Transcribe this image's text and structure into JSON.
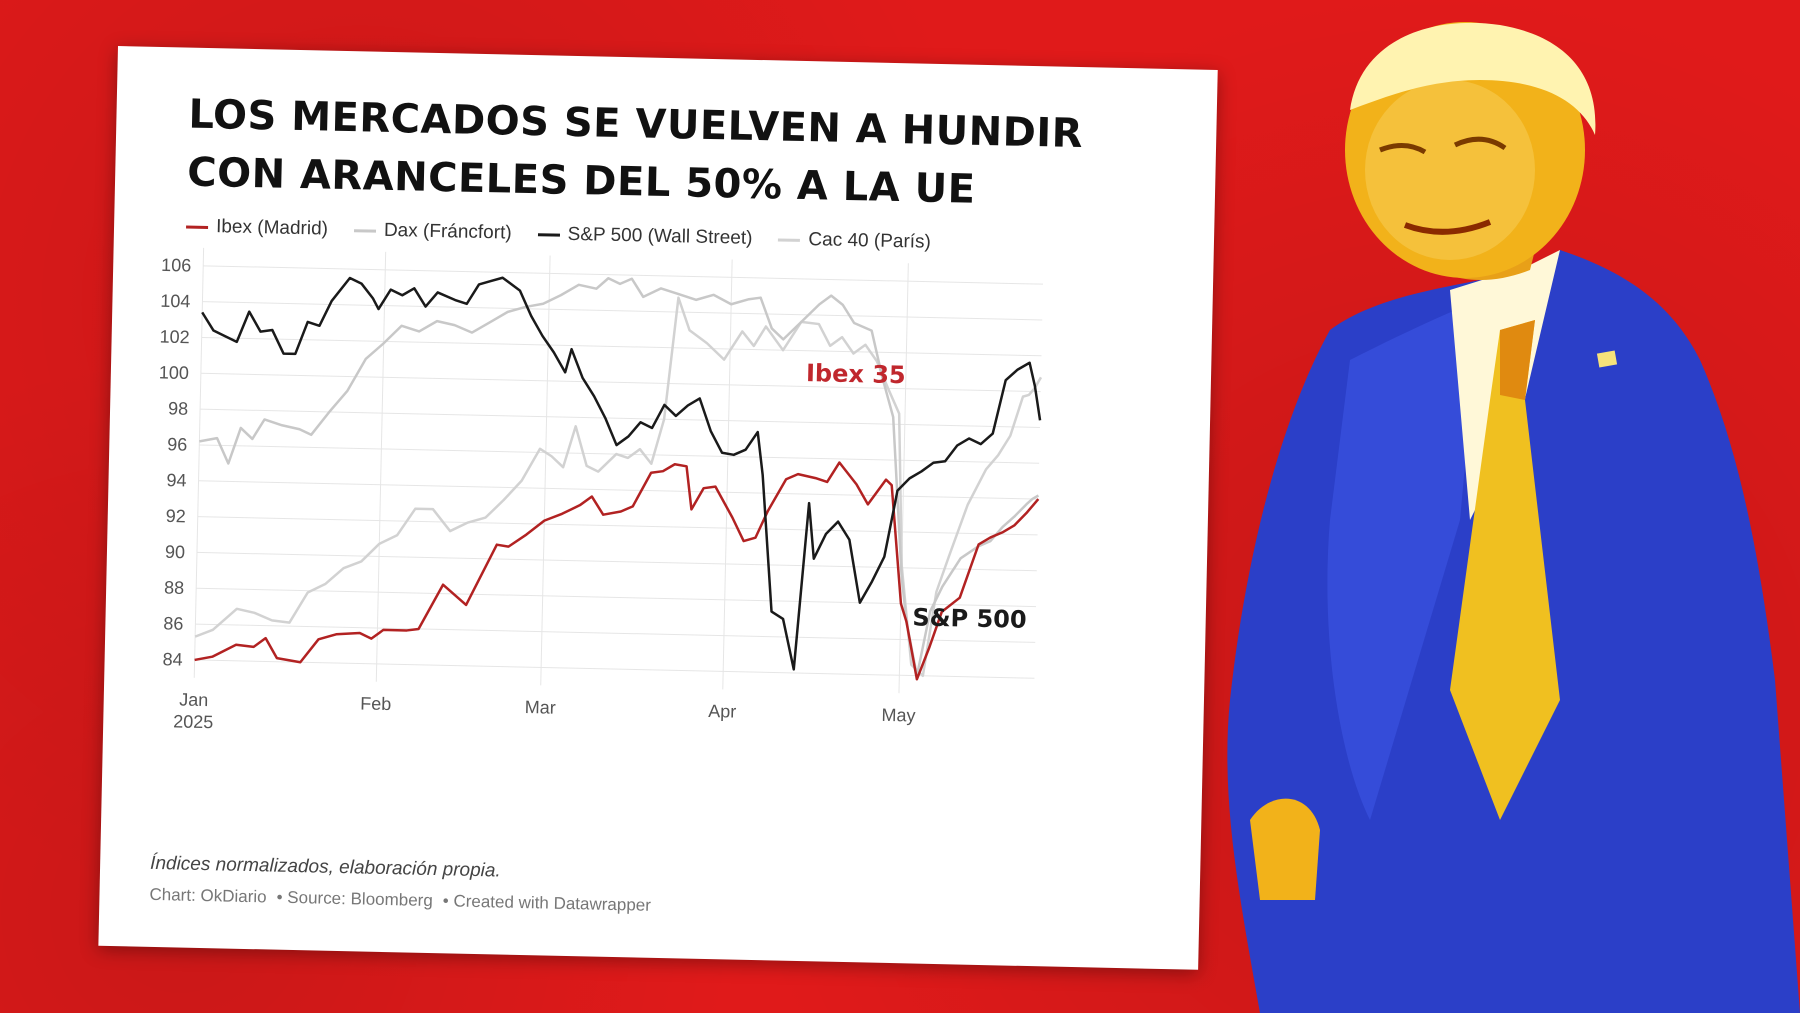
{
  "chart_data": {
    "type": "line",
    "title": "LOS MERCADOS SE VUELVEN A HUNDIR CON ARANCELES DEL 50% A LA UE",
    "title_lines": [
      "LOS MERCADOS SE VUELVEN A HUNDIR",
      "CON ARANCELES DEL 50% A LA UE"
    ],
    "ylim": [
      83,
      107
    ],
    "y_ticks": [
      84,
      86,
      88,
      90,
      92,
      94,
      96,
      98,
      100,
      102,
      104,
      106
    ],
    "x_ticks": [
      {
        "label": "Jan",
        "sub": "2025",
        "day": 1
      },
      {
        "label": "Feb",
        "sub": "",
        "day": 32
      },
      {
        "label": "Mar",
        "sub": "",
        "day": 60
      },
      {
        "label": "Apr",
        "sub": "",
        "day": 91
      },
      {
        "label": "May",
        "sub": "",
        "day": 121
      }
    ],
    "xlim": [
      1,
      144
    ],
    "grid": true,
    "legend_position": "top-left",
    "series": [
      {
        "name": "Ibex (Madrid)",
        "color": "#b22222",
        "width": 2.5,
        "points": [
          [
            1,
            84.0
          ],
          [
            4,
            84.2
          ],
          [
            8,
            84.9
          ],
          [
            11,
            84.8
          ],
          [
            13,
            85.3
          ],
          [
            15,
            84.2
          ],
          [
            19,
            84.0
          ],
          [
            22,
            85.3
          ],
          [
            25,
            85.6
          ],
          [
            29,
            85.7
          ],
          [
            31,
            85.4
          ],
          [
            33,
            85.9
          ],
          [
            37,
            85.9
          ],
          [
            39,
            86.0
          ],
          [
            43,
            88.5
          ],
          [
            47,
            87.4
          ],
          [
            52,
            90.8
          ],
          [
            54,
            90.7
          ],
          [
            57,
            91.4
          ],
          [
            60,
            92.2
          ],
          [
            63,
            92.6
          ],
          [
            66,
            93.1
          ],
          [
            68,
            93.6
          ],
          [
            70,
            92.6
          ],
          [
            73,
            92.8
          ],
          [
            75,
            93.1
          ],
          [
            78,
            95.0
          ],
          [
            80,
            95.1
          ],
          [
            82,
            95.5
          ],
          [
            84,
            95.4
          ],
          [
            85,
            93.0
          ],
          [
            87,
            94.2
          ],
          [
            89,
            94.3
          ],
          [
            92,
            92.6
          ],
          [
            94,
            91.3
          ],
          [
            96,
            91.5
          ],
          [
            98,
            93.0
          ],
          [
            101,
            94.8
          ],
          [
            103,
            95.1
          ],
          [
            106,
            94.9
          ],
          [
            108,
            94.7
          ],
          [
            110,
            95.8
          ],
          [
            113,
            94.6
          ],
          [
            115,
            93.5
          ],
          [
            118,
            94.9
          ],
          [
            119,
            94.6
          ],
          [
            121,
            88.0
          ],
          [
            122,
            87.0
          ],
          [
            124,
            83.8
          ],
          [
            126,
            85.6
          ],
          [
            128,
            87.6
          ],
          [
            131,
            88.4
          ],
          [
            134,
            91.4
          ],
          [
            136,
            91.8
          ],
          [
            138,
            92.1
          ],
          [
            140,
            92.5
          ],
          [
            142,
            93.2
          ],
          [
            143,
            93.6
          ],
          [
            144,
            94.0
          ]
        ]
      },
      {
        "name": "Dax (Fráncfort)",
        "color": "#c8c8c8",
        "width": 2.5,
        "points": [
          [
            1,
            96.2
          ],
          [
            4,
            96.4
          ],
          [
            6,
            95.0
          ],
          [
            8,
            97.0
          ],
          [
            10,
            96.4
          ],
          [
            12,
            97.5
          ],
          [
            15,
            97.2
          ],
          [
            18,
            97.0
          ],
          [
            20,
            96.7
          ],
          [
            23,
            98.0
          ],
          [
            26,
            99.2
          ],
          [
            29,
            101.0
          ],
          [
            32,
            101.9
          ],
          [
            35,
            102.9
          ],
          [
            38,
            102.6
          ],
          [
            41,
            103.2
          ],
          [
            44,
            103.0
          ],
          [
            47,
            102.6
          ],
          [
            50,
            103.2
          ],
          [
            53,
            103.8
          ],
          [
            56,
            104.1
          ],
          [
            59,
            104.3
          ],
          [
            62,
            104.8
          ],
          [
            65,
            105.4
          ],
          [
            68,
            105.2
          ],
          [
            70,
            105.8
          ],
          [
            72,
            105.5
          ],
          [
            74,
            105.8
          ],
          [
            76,
            104.8
          ],
          [
            79,
            105.3
          ],
          [
            82,
            105.0
          ],
          [
            85,
            104.7
          ],
          [
            88,
            105.0
          ],
          [
            91,
            104.5
          ],
          [
            94,
            104.8
          ],
          [
            96,
            104.9
          ],
          [
            98,
            103.2
          ],
          [
            100,
            102.6
          ],
          [
            103,
            103.6
          ],
          [
            106,
            104.6
          ],
          [
            108,
            105.1
          ],
          [
            110,
            104.6
          ],
          [
            112,
            103.6
          ],
          [
            115,
            103.2
          ],
          [
            117,
            100.6
          ],
          [
            119,
            98.4
          ],
          [
            121,
            89.6
          ],
          [
            122,
            87.0
          ],
          [
            124,
            84.0
          ],
          [
            126,
            87.6
          ],
          [
            128,
            89.0
          ],
          [
            131,
            90.6
          ],
          [
            134,
            91.3
          ],
          [
            136,
            91.6
          ],
          [
            138,
            92.4
          ],
          [
            140,
            93.0
          ],
          [
            142,
            93.7
          ],
          [
            143,
            94.0
          ],
          [
            144,
            94.2
          ]
        ]
      },
      {
        "name": "S&P 500 (Wall Street)",
        "color": "#1a1a1a",
        "width": 2.5,
        "points": [
          [
            1,
            103.4
          ],
          [
            3,
            102.4
          ],
          [
            5,
            102.1
          ],
          [
            7,
            101.8
          ],
          [
            9,
            103.5
          ],
          [
            11,
            102.4
          ],
          [
            13,
            102.5
          ],
          [
            15,
            101.2
          ],
          [
            17,
            101.2
          ],
          [
            19,
            103.0
          ],
          [
            21,
            102.8
          ],
          [
            23,
            104.2
          ],
          [
            26,
            105.5
          ],
          [
            28,
            105.2
          ],
          [
            30,
            104.4
          ],
          [
            31,
            103.8
          ],
          [
            33,
            104.9
          ],
          [
            35,
            104.6
          ],
          [
            37,
            105.0
          ],
          [
            39,
            104.0
          ],
          [
            41,
            104.8
          ],
          [
            44,
            104.4
          ],
          [
            46,
            104.2
          ],
          [
            48,
            105.3
          ],
          [
            50,
            105.5
          ],
          [
            52,
            105.7
          ],
          [
            55,
            105.0
          ],
          [
            57,
            103.6
          ],
          [
            59,
            102.5
          ],
          [
            61,
            101.6
          ],
          [
            63,
            100.5
          ],
          [
            64,
            101.8
          ],
          [
            66,
            100.2
          ],
          [
            68,
            99.2
          ],
          [
            70,
            98.0
          ],
          [
            72,
            96.5
          ],
          [
            74,
            97.0
          ],
          [
            76,
            97.8
          ],
          [
            78,
            97.5
          ],
          [
            80,
            98.8
          ],
          [
            82,
            98.2
          ],
          [
            84,
            98.8
          ],
          [
            86,
            99.2
          ],
          [
            88,
            97.4
          ],
          [
            90,
            96.2
          ],
          [
            92,
            96.1
          ],
          [
            94,
            96.4
          ],
          [
            96,
            97.4
          ],
          [
            97,
            95.0
          ],
          [
            99,
            87.4
          ],
          [
            101,
            87.0
          ],
          [
            103,
            84.2
          ],
          [
            105,
            93.5
          ],
          [
            106,
            90.4
          ],
          [
            108,
            91.8
          ],
          [
            110,
            92.5
          ],
          [
            112,
            91.5
          ],
          [
            114,
            88.0
          ],
          [
            116,
            89.2
          ],
          [
            118,
            90.6
          ],
          [
            120,
            94.3
          ],
          [
            122,
            95.0
          ],
          [
            124,
            95.4
          ],
          [
            126,
            95.9
          ],
          [
            128,
            96.0
          ],
          [
            130,
            96.9
          ],
          [
            132,
            97.3
          ],
          [
            134,
            97.0
          ],
          [
            136,
            97.6
          ],
          [
            138,
            100.6
          ],
          [
            140,
            101.2
          ],
          [
            142,
            101.6
          ],
          [
            143,
            100.3
          ],
          [
            144,
            98.4
          ]
        ]
      },
      {
        "name": "Cac 40 (París)",
        "color": "#d2d2d2",
        "width": 2.5,
        "points": [
          [
            1,
            85.3
          ],
          [
            4,
            85.7
          ],
          [
            8,
            86.9
          ],
          [
            11,
            86.7
          ],
          [
            14,
            86.3
          ],
          [
            17,
            86.2
          ],
          [
            20,
            87.9
          ],
          [
            23,
            88.4
          ],
          [
            26,
            89.3
          ],
          [
            29,
            89.7
          ],
          [
            32,
            90.7
          ],
          [
            35,
            91.2
          ],
          [
            38,
            92.7
          ],
          [
            41,
            92.7
          ],
          [
            44,
            91.5
          ],
          [
            47,
            92.0
          ],
          [
            50,
            92.3
          ],
          [
            53,
            93.3
          ],
          [
            56,
            94.4
          ],
          [
            59,
            96.2
          ],
          [
            61,
            95.8
          ],
          [
            63,
            95.2
          ],
          [
            65,
            97.5
          ],
          [
            67,
            95.3
          ],
          [
            69,
            95.0
          ],
          [
            72,
            96.0
          ],
          [
            74,
            95.8
          ],
          [
            76,
            96.3
          ],
          [
            78,
            95.5
          ],
          [
            80,
            98.0
          ],
          [
            82,
            104.8
          ],
          [
            84,
            103.0
          ],
          [
            87,
            102.3
          ],
          [
            90,
            101.4
          ],
          [
            93,
            103.0
          ],
          [
            95,
            102.2
          ],
          [
            97,
            103.3
          ],
          [
            100,
            102.0
          ],
          [
            103,
            103.6
          ],
          [
            106,
            103.5
          ],
          [
            108,
            102.3
          ],
          [
            110,
            102.8
          ],
          [
            112,
            101.9
          ],
          [
            114,
            102.4
          ],
          [
            116,
            101.5
          ],
          [
            118,
            100.0
          ],
          [
            120,
            98.6
          ],
          [
            121,
            90.1
          ],
          [
            123,
            84.6
          ],
          [
            125,
            84.0
          ],
          [
            127,
            88.7
          ],
          [
            129,
            90.7
          ],
          [
            132,
            93.6
          ],
          [
            135,
            95.6
          ],
          [
            137,
            96.4
          ],
          [
            139,
            97.5
          ],
          [
            141,
            99.7
          ],
          [
            142,
            99.8
          ],
          [
            143,
            100.2
          ],
          [
            144,
            100.8
          ]
        ]
      }
    ],
    "annotations": [
      {
        "text": "Ibex 35",
        "color": "#c0272d"
      },
      {
        "text": "S&P 500",
        "color": "#1a1a1a"
      }
    ]
  },
  "footer": {
    "note": "Índices normalizados, elaboración propia.",
    "chart_credit": "Chart: OkDiario",
    "source": "• Source: Bloomberg",
    "created": "• Created with Datawrapper"
  },
  "colors": {
    "background": "#e01a1a",
    "card": "#ffffff",
    "person_suit": "#2b3fc8",
    "person_skin": "#f2b21a",
    "person_tie": "#f0c020"
  }
}
